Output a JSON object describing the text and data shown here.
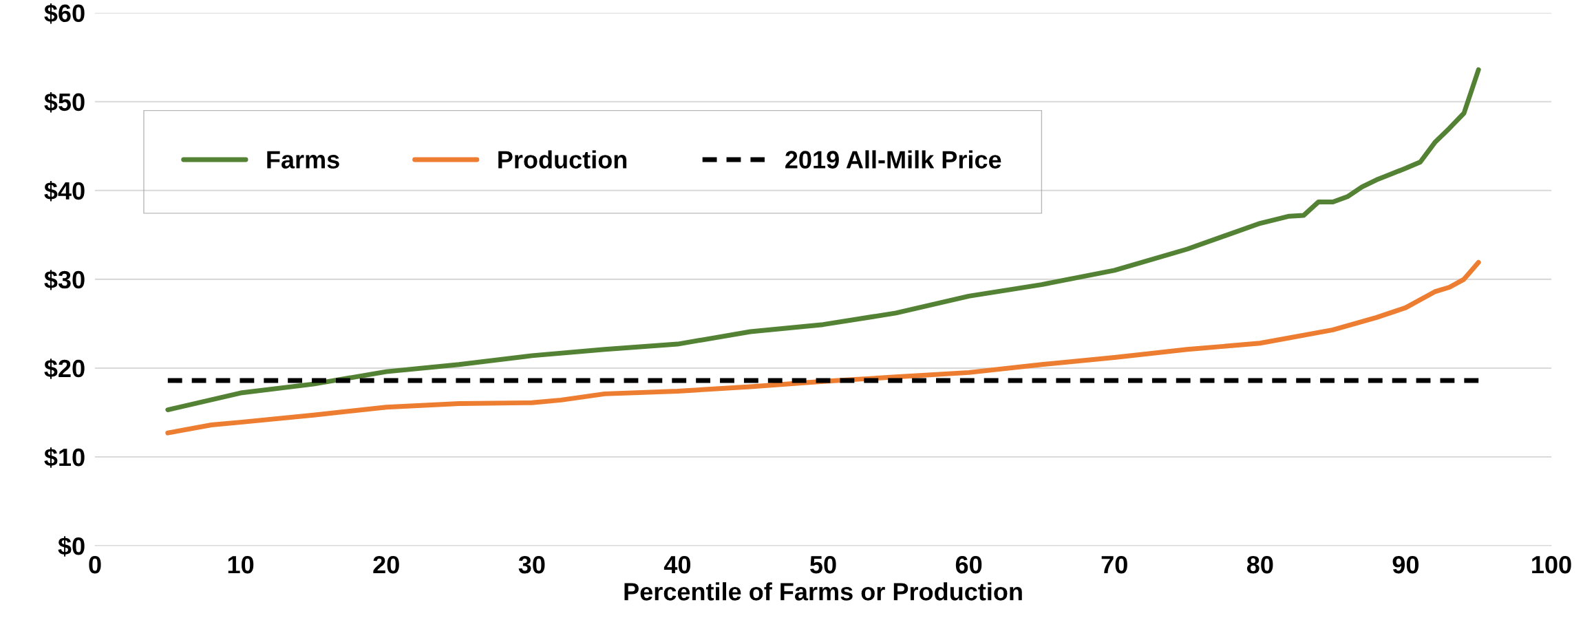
{
  "chart_data": {
    "type": "line",
    "xlabel": "Percentile of Farms or Production",
    "xlim": [
      0,
      100
    ],
    "xticks": [
      0,
      10,
      20,
      30,
      40,
      50,
      60,
      70,
      80,
      90,
      100
    ],
    "ylim": [
      0,
      60
    ],
    "yticks": [
      {
        "value": 0,
        "label": "$0"
      },
      {
        "value": 10,
        "label": "$10"
      },
      {
        "value": 20,
        "label": "$20"
      },
      {
        "value": 30,
        "label": "$30"
      },
      {
        "value": 40,
        "label": "$40"
      },
      {
        "value": 50,
        "label": "$50"
      },
      {
        "value": 60,
        "label": "$60"
      }
    ],
    "grid": "y",
    "legend": "top left",
    "marker": "none",
    "series": [
      {
        "name": "Farms",
        "color": "#548235",
        "x": [
          5,
          10,
          15,
          20,
          25,
          30,
          35,
          40,
          45,
          50,
          55,
          60,
          65,
          70,
          75,
          80,
          82,
          83,
          84,
          85,
          86,
          87,
          88,
          90,
          91,
          92,
          93,
          94,
          95
        ],
        "values": [
          15.3,
          17.2,
          18.2,
          19.6,
          20.4,
          21.4,
          22.1,
          22.7,
          24.1,
          24.9,
          26.2,
          28.1,
          29.4,
          31.0,
          33.4,
          36.3,
          37.1,
          37.2,
          38.7,
          38.7,
          39.3,
          40.4,
          41.2,
          42.5,
          43.2,
          45.4,
          47.0,
          48.7,
          53.6
        ]
      },
      {
        "name": "Production",
        "color": "#ed7d31",
        "x": [
          5,
          8,
          10,
          15,
          20,
          25,
          30,
          32,
          35,
          40,
          45,
          50,
          55,
          60,
          65,
          70,
          75,
          80,
          85,
          88,
          90,
          92,
          93,
          94,
          95
        ],
        "values": [
          12.7,
          13.6,
          13.9,
          14.7,
          15.6,
          16.0,
          16.1,
          16.4,
          17.1,
          17.4,
          17.9,
          18.5,
          19.0,
          19.5,
          20.4,
          21.2,
          22.1,
          22.8,
          24.3,
          25.7,
          26.8,
          28.6,
          29.1,
          30.0,
          31.9
        ]
      },
      {
        "name": "2019 All-Milk Price",
        "color": "#000000",
        "line_style": "dashed",
        "x": [
          5,
          95
        ],
        "values": [
          18.6,
          18.6
        ]
      }
    ]
  }
}
